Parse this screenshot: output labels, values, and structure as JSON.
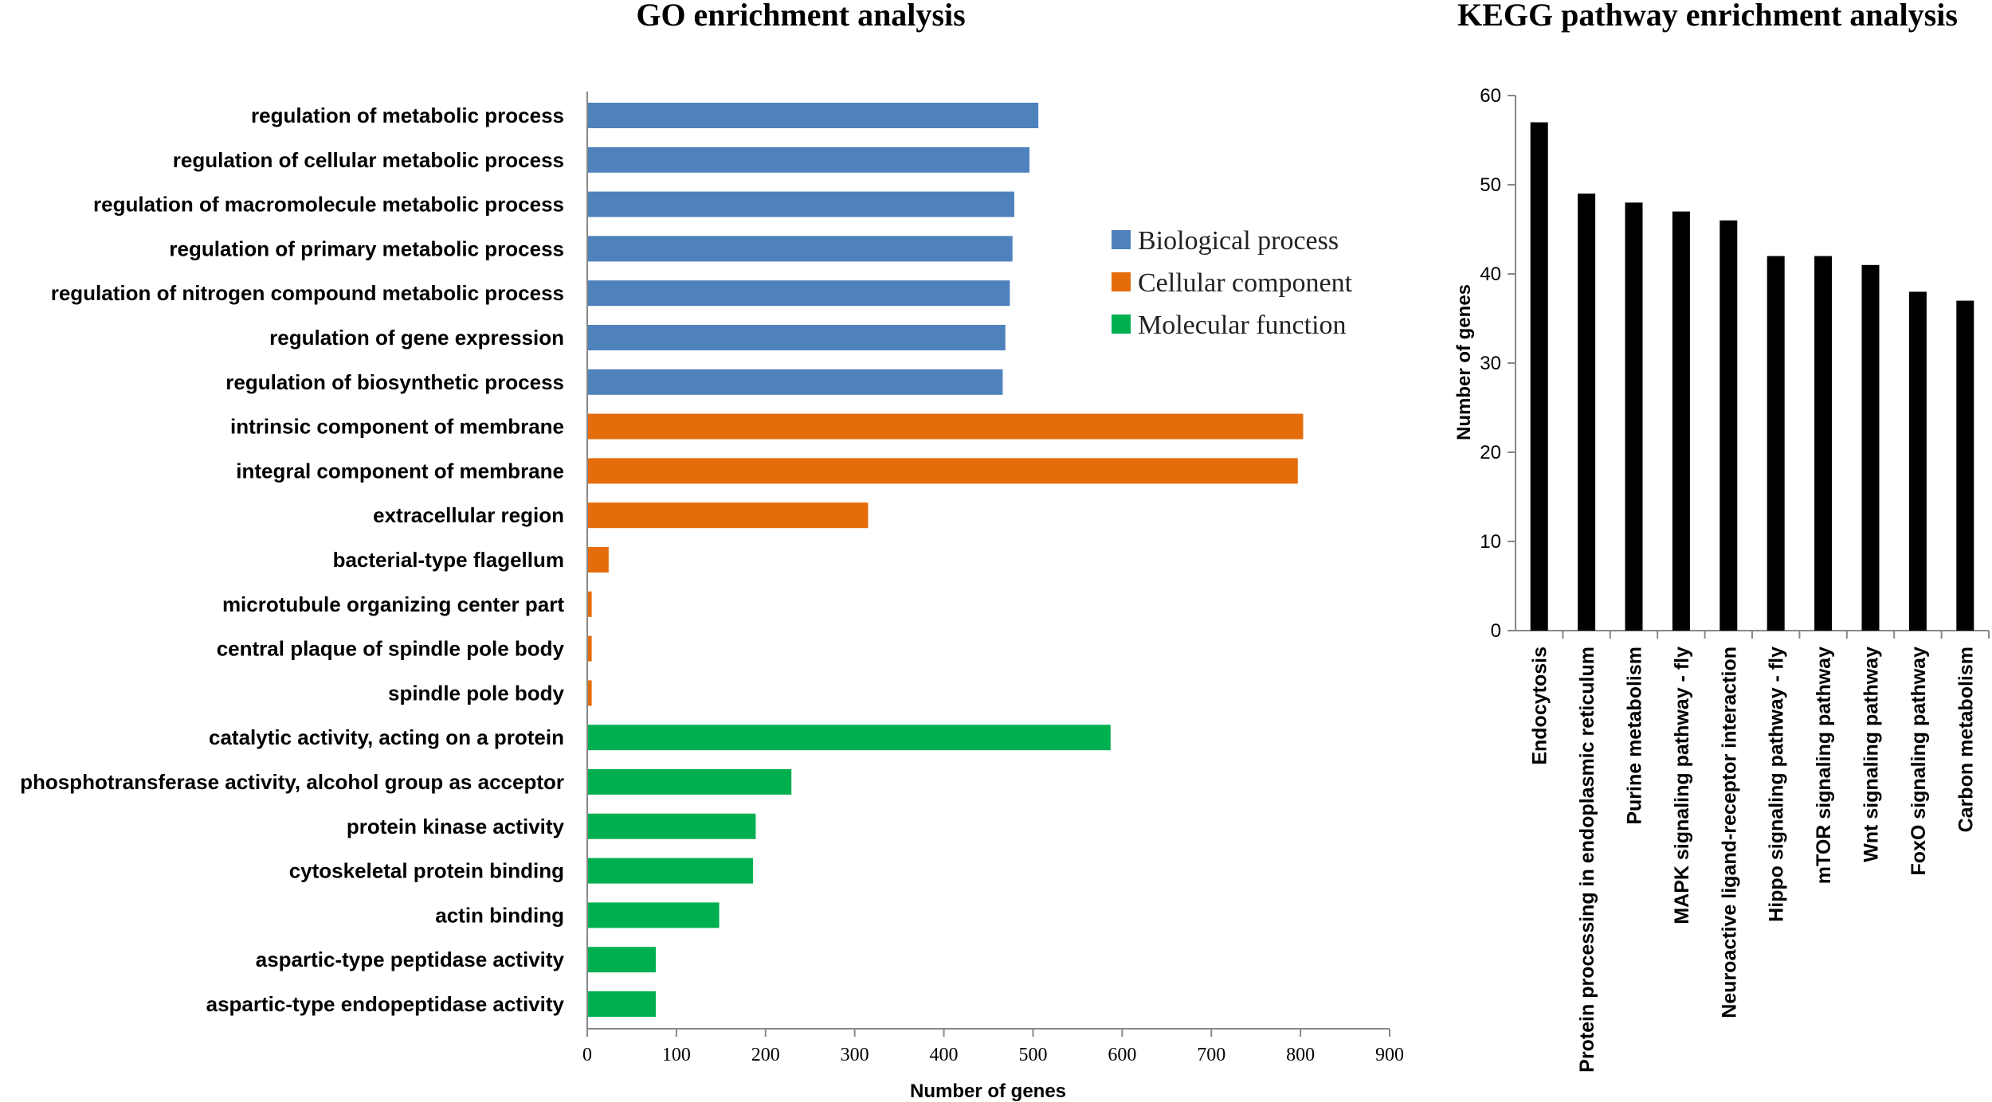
{
  "chart_data": [
    {
      "type": "bar",
      "orientation": "horizontal",
      "title": "GO enrichment analysis",
      "xlabel": "Number of genes",
      "ylabel": "",
      "xlim": [
        0,
        900
      ],
      "xticks": [
        0,
        100,
        200,
        300,
        400,
        500,
        600,
        700,
        800,
        900
      ],
      "legend_position": "top-right",
      "legend": [
        {
          "name": "Biological process",
          "color": "#4f81bd"
        },
        {
          "name": "Cellular component",
          "color": "#e46c0a"
        },
        {
          "name": "Molecular function",
          "color": "#00b050"
        }
      ],
      "categories": [
        "regulation of metabolic process",
        "regulation of cellular metabolic process",
        "regulation of macromolecule metabolic process",
        "regulation of primary metabolic process",
        "regulation of nitrogen compound metabolic process",
        "regulation of gene expression",
        "regulation of biosynthetic process",
        "intrinsic component of membrane",
        "integral component of membrane",
        "extracellular region",
        "bacterial-type flagellum",
        "microtubule organizing center part",
        "central plaque of spindle pole body",
        "spindle pole body",
        "catalytic activity, acting on a protein",
        "phosphotransferase activity, alcohol group as acceptor",
        "protein kinase activity",
        "cytoskeletal protein binding",
        "actin binding",
        "aspartic-type peptidase activity",
        "aspartic-type endopeptidase activity"
      ],
      "values": [
        506,
        496,
        479,
        477,
        474,
        469,
        466,
        803,
        797,
        315,
        24,
        5,
        5,
        5,
        587,
        229,
        189,
        186,
        148,
        77,
        77
      ],
      "groups": [
        "Biological process",
        "Biological process",
        "Biological process",
        "Biological process",
        "Biological process",
        "Biological process",
        "Biological process",
        "Cellular component",
        "Cellular component",
        "Cellular component",
        "Cellular component",
        "Cellular component",
        "Cellular component",
        "Cellular component",
        "Molecular function",
        "Molecular function",
        "Molecular function",
        "Molecular function",
        "Molecular function",
        "Molecular function",
        "Molecular function"
      ]
    },
    {
      "type": "bar",
      "orientation": "vertical",
      "title": "KEGG pathway enrichment analysis",
      "xlabel": "",
      "ylabel": "Number of genes",
      "ylim": [
        0,
        60
      ],
      "yticks": [
        0,
        10,
        20,
        30,
        40,
        50,
        60
      ],
      "bar_color": "#000000",
      "categories": [
        "Endocytosis",
        "Protein processing in endoplasmic reticulum",
        "Purine metabolism",
        "MAPK signaling pathway - fly",
        "Neuroactive ligand-receptor interaction",
        "Hippo signaling pathway - fly",
        "mTOR signaling pathway",
        "Wnt signaling pathway",
        "FoxO signaling pathway",
        "Carbon metabolism"
      ],
      "values": [
        57,
        49,
        48,
        47,
        46,
        42,
        42,
        41,
        38,
        37
      ]
    }
  ]
}
